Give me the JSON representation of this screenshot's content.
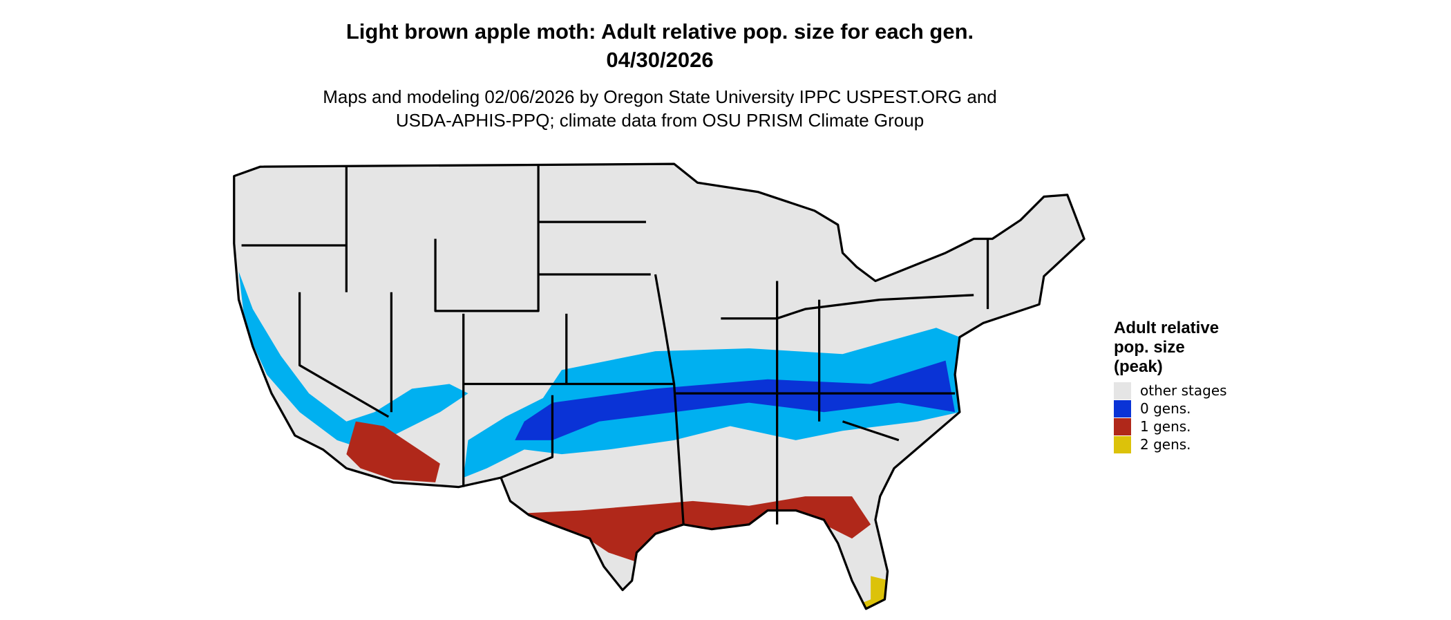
{
  "title": "Light brown apple moth: Adult relative pop. size for each gen.",
  "date": "04/30/2026",
  "subtitle_lines": [
    "Maps and modeling 02/06/2026 by Oregon State University IPPC USPEST.ORG and",
    "USDA-APHIS-PPQ; climate data from OSU PRISM Climate Group"
  ],
  "legend": {
    "title_lines": [
      "Adult relative",
      "pop. size",
      "(peak)"
    ],
    "items": [
      {
        "label": "other stages",
        "color": "#e5e5e5"
      },
      {
        "label": "0 gens.",
        "color": "#0a33d6"
      },
      {
        "label": "1 gens.",
        "color": "#b0281a"
      },
      {
        "label": "2 gens.",
        "color": "#dcc20a"
      }
    ]
  }
}
